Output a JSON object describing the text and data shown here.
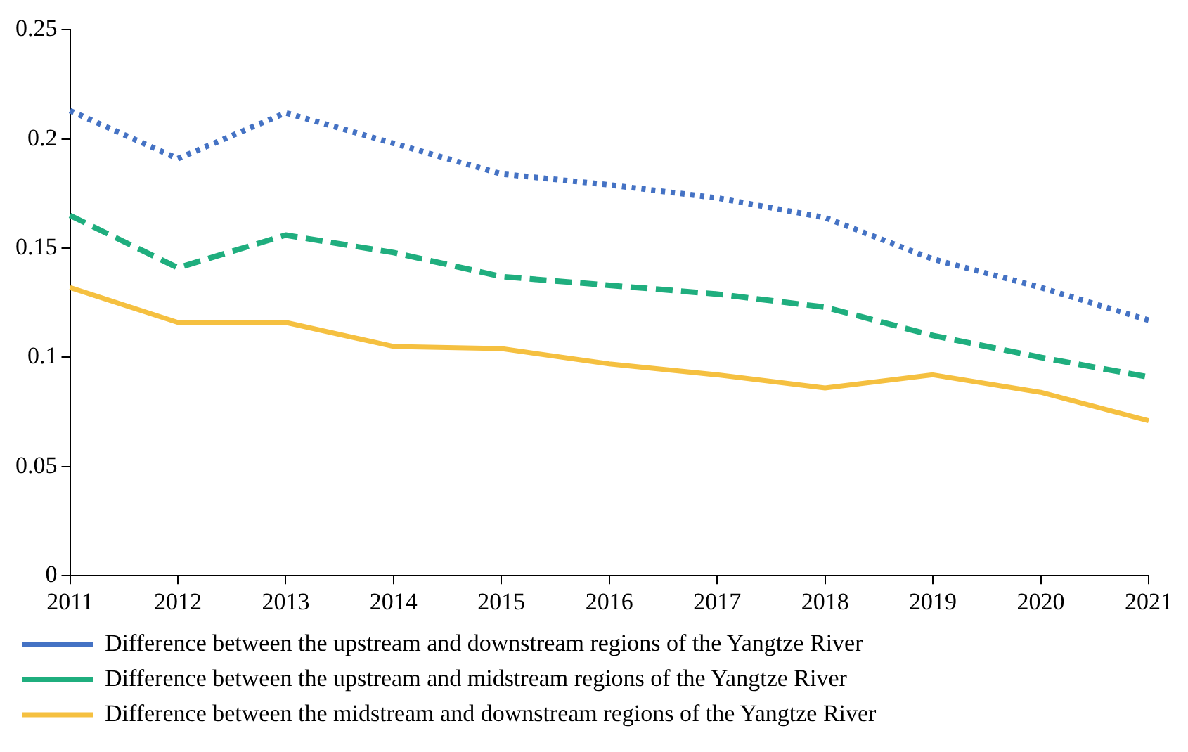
{
  "chart_data": {
    "type": "line",
    "categories": [
      "2011",
      "2012",
      "2013",
      "2014",
      "2015",
      "2016",
      "2017",
      "2018",
      "2019",
      "2020",
      "2021"
    ],
    "series": [
      {
        "name": "Difference between the upstream and downstream regions of the Yangtze River",
        "color": "#4472c4",
        "line_style": "dotted",
        "values": [
          0.213,
          0.191,
          0.212,
          0.198,
          0.184,
          0.179,
          0.173,
          0.164,
          0.145,
          0.132,
          0.117
        ]
      },
      {
        "name": "Difference between the upstream and midstream regions of the Yangtze River",
        "color": "#1fae7e",
        "line_style": "dashed",
        "values": [
          0.165,
          0.141,
          0.156,
          0.148,
          0.137,
          0.133,
          0.129,
          0.123,
          0.11,
          0.1,
          0.091
        ]
      },
      {
        "name": "Difference between the midstream and downstream regions of the Yangtze River",
        "color": "#f5c040",
        "line_style": "solid",
        "values": [
          0.132,
          0.116,
          0.116,
          0.105,
          0.104,
          0.097,
          0.092,
          0.086,
          0.092,
          0.084,
          0.071
        ]
      }
    ],
    "ylim": [
      0,
      0.25
    ],
    "yticks": [
      0,
      0.05,
      0.1,
      0.15,
      0.2,
      0.25
    ],
    "grid": false,
    "legend": "bottom",
    "marker": "none"
  }
}
